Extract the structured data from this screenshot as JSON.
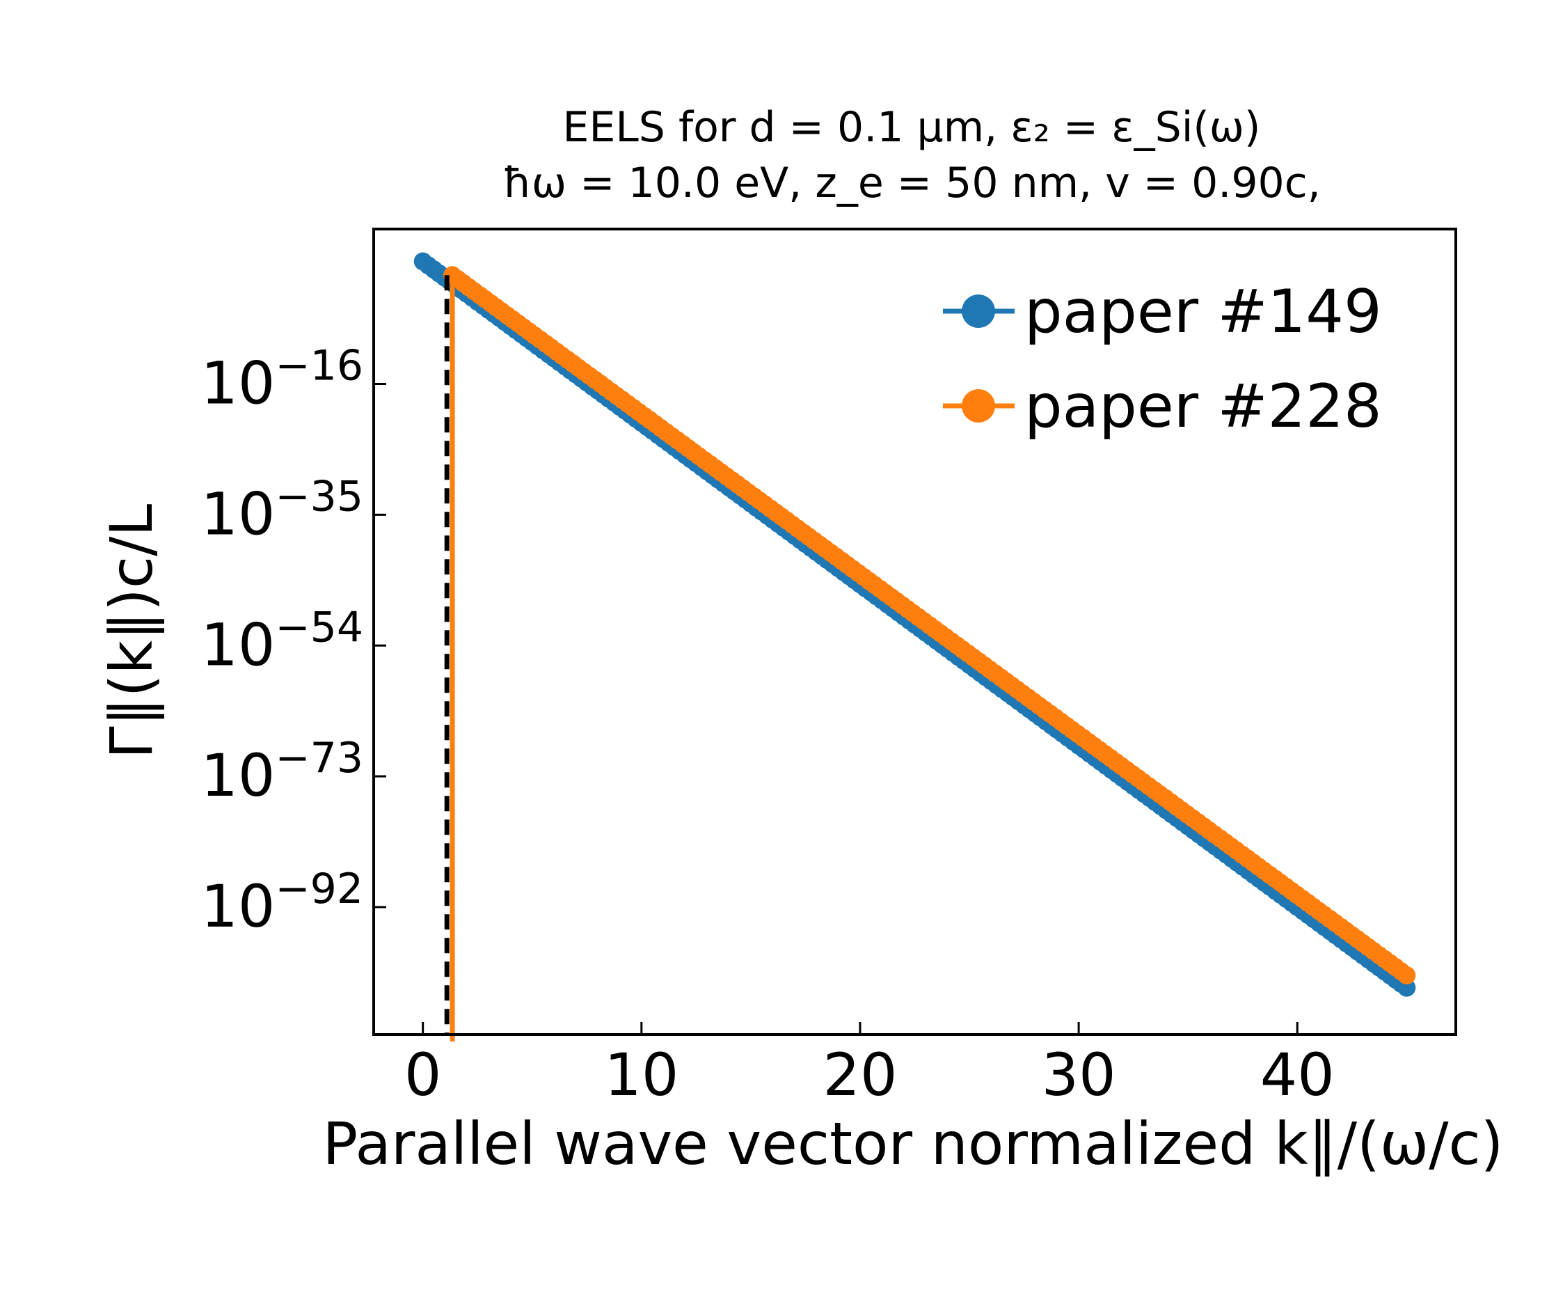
{
  "chart_data": {
    "type": "line",
    "title_line1": "EELS for d = 0.1 μm, ε₂ = ε_Si(ω)",
    "title_line2": "ħω = 10.0 eV, z_e = 50 nm, v = 0.90c,",
    "xlabel": "Parallel wave vector normalized k∥/(ω/c)",
    "ylabel": "Γ∥(k∥)c/L",
    "y_scale": "log",
    "xlim": [
      -2.25,
      47.25
    ],
    "ylim_log10": [
      -110.5,
      6.5
    ],
    "x_ticks": [
      0,
      10,
      20,
      30,
      40
    ],
    "x_tick_labels": [
      "0",
      "10",
      "20",
      "30",
      "40"
    ],
    "y_ticks_log10": [
      -16,
      -35,
      -54,
      -73,
      -92
    ],
    "y_tick_labels": [
      {
        "base": "10",
        "exp": "−16"
      },
      {
        "base": "10",
        "exp": "−35"
      },
      {
        "base": "10",
        "exp": "−54"
      },
      {
        "base": "10",
        "exp": "−73"
      },
      {
        "base": "10",
        "exp": "−92"
      }
    ],
    "grid": false,
    "legend_position": "top-right",
    "series": [
      {
        "name": "paper #149",
        "color": "#1f77b4",
        "marker": "circle",
        "x_start": 0.0,
        "x_end": 45.0,
        "n_points": 181,
        "log10_y_start": 1.8,
        "log10_y_end": -103.7,
        "note_shape": "straight line in log space (exponential decay)"
      },
      {
        "name": "paper #228",
        "color": "#ff7f0e",
        "marker": "circle",
        "x_start": 1.35,
        "x_end": 45.0,
        "n_points": 175,
        "log10_y_start": -0.2,
        "log10_y_end": -101.9,
        "drop_at_x": 1.35
      }
    ],
    "vline": {
      "x": 1.1,
      "style": "dashed",
      "color": "#000000"
    }
  }
}
